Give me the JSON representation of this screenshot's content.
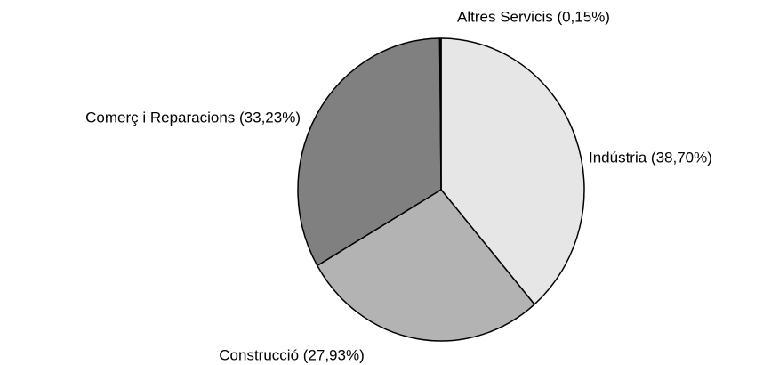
{
  "chart_data": {
    "type": "pie",
    "labels": [
      "Indústria (38,70%)",
      "Construcció (27,93%)",
      "Comerç i Reparacions (33,23%)",
      "Altres Servicis (0,15%)"
    ],
    "values": [
      38.7,
      27.93,
      33.23,
      0.15
    ],
    "colors": [
      "#e6e6e6",
      "#b3b3b3",
      "#808080",
      "#000000"
    ]
  }
}
